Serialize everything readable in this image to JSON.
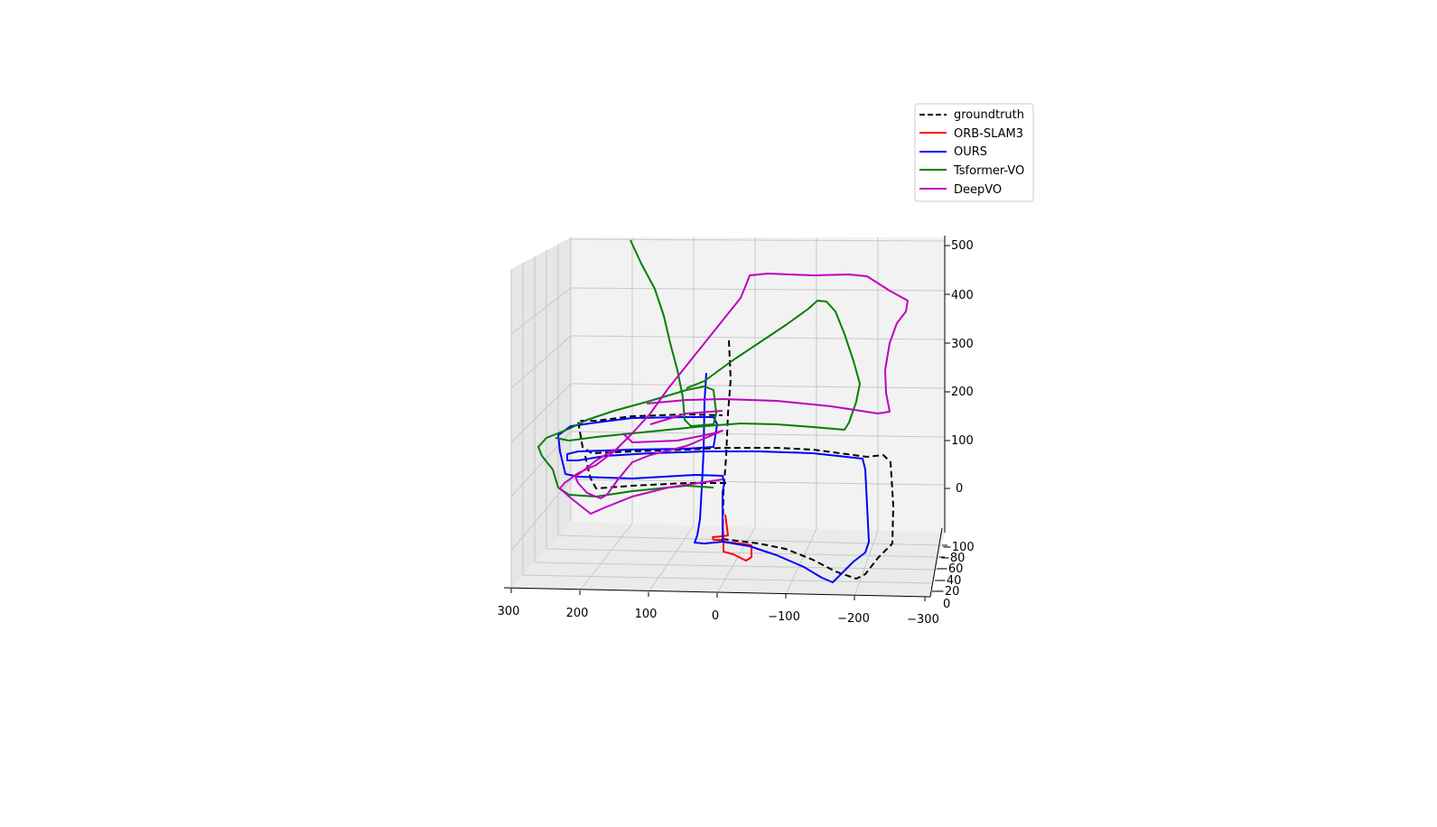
{
  "chart_data": {
    "type": "line",
    "projection": "3d",
    "title": "",
    "xlabel": "",
    "ylabel": "",
    "zlabel": "",
    "x_ticks": [
      "300",
      "200",
      "100",
      "0",
      "−100",
      "−200",
      "−300"
    ],
    "y_ticks": [
      "−100",
      "−80",
      "−60",
      "−40",
      "−20",
      "0"
    ],
    "z_ticks": [
      "0",
      "100",
      "200",
      "300",
      "400",
      "500"
    ],
    "xlim": [
      300,
      -300
    ],
    "ylim": [
      -100,
      0
    ],
    "zlim": [
      -80,
      520
    ],
    "grid": true,
    "legend_position": "upper-right",
    "series": [
      {
        "name": "groundtruth",
        "color": "#000000",
        "style": "dashed"
      },
      {
        "name": "ORB-SLAM3",
        "color": "#ff0000",
        "style": "solid"
      },
      {
        "name": "OURS",
        "color": "#0000ff",
        "style": "solid"
      },
      {
        "name": "Tsformer-VO",
        "color": "#008000",
        "style": "solid"
      },
      {
        "name": "DeepVO",
        "color": "#bf00bf",
        "style": "solid"
      }
    ]
  }
}
